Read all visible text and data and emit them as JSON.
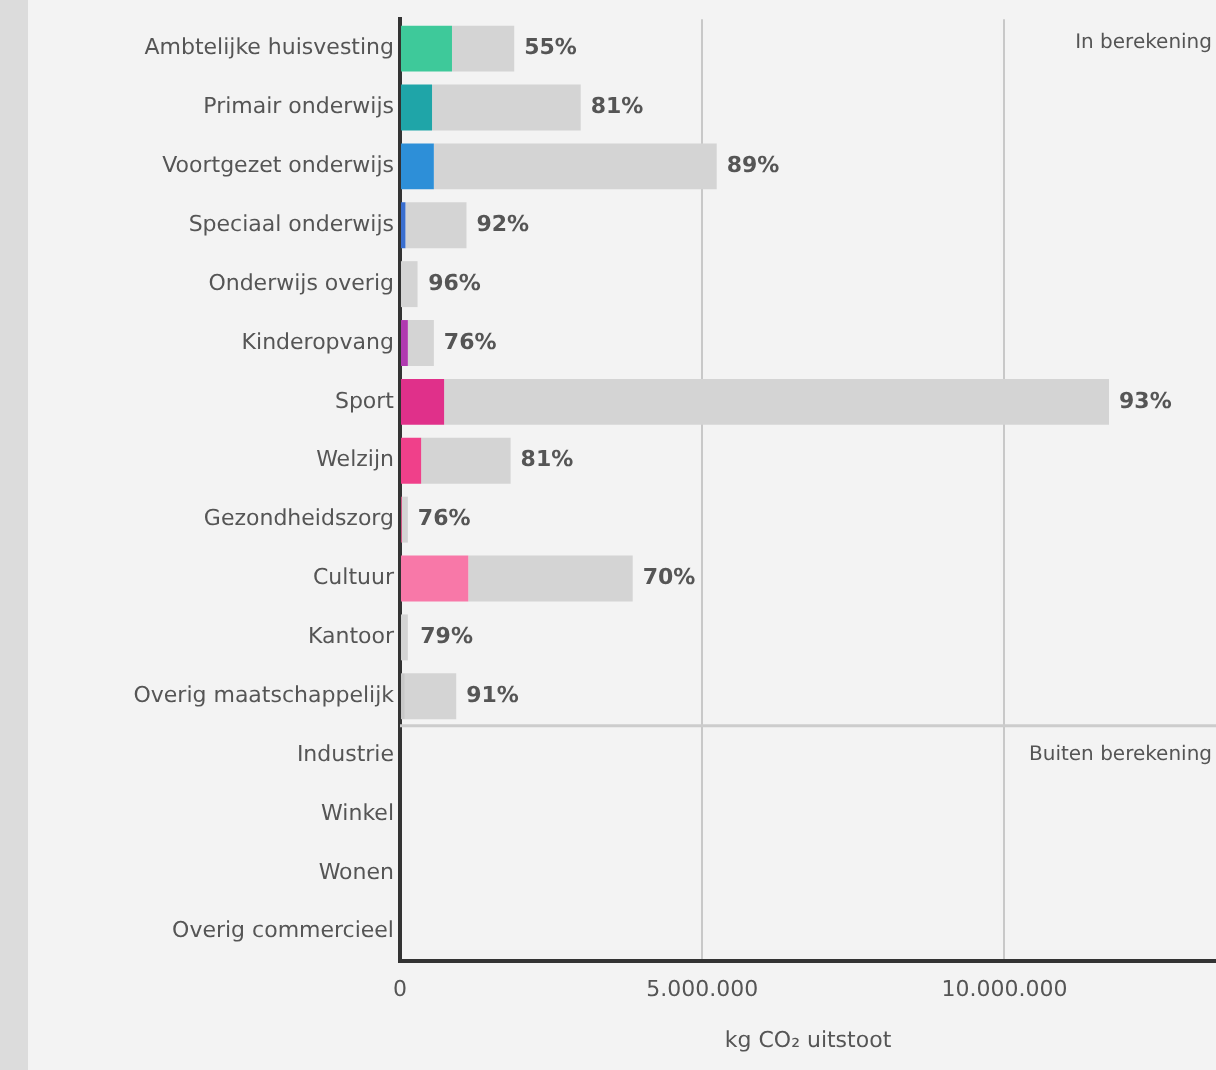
{
  "chart_data": {
    "type": "bar",
    "orientation": "horizontal",
    "stacked": true,
    "xlabel": "kg CO₂ uitstoot",
    "categories": [
      "Ambtelijke huisvesting",
      "Primair onderwijs",
      "Voortgezet onderwijs",
      "Speciaal onderwijs",
      "Onderwijs overig",
      "Kinderopvang",
      "Sport",
      "Welzijn",
      "Gezondheidszorg",
      "Cultuur",
      "Kantoor",
      "Overig maatschappelijk",
      "Industrie",
      "Winkel",
      "Wonen",
      "Overig commercieel"
    ],
    "series": [
      {
        "colors": [
          "#3ec99a",
          "#1fa5a8",
          "#2d8fd8",
          "#3a6fd0",
          "#7a5cc8",
          "#b03ab0",
          "#e0308a",
          "#f0408a",
          "#f05a90",
          "#f878a8",
          "#c8c8c8",
          "#c8c8c8",
          null,
          null,
          null,
          null
        ],
        "values": [
          860000,
          530000,
          560000,
          90000,
          null,
          130000,
          730000,
          350000,
          30000,
          1130000,
          null,
          80000,
          null,
          null,
          null,
          null
        ]
      },
      {
        "color": "#d4d4d4",
        "values": [
          1030000,
          2460000,
          4680000,
          1010000,
          290000,
          430000,
          11000000,
          1480000,
          100000,
          2720000,
          130000,
          850000,
          null,
          null,
          null,
          null
        ]
      }
    ],
    "xlim": [
      0,
      13500000
    ],
    "xticks": [
      0,
      {
        "value": 5000000,
        "label": "5.000.000"
      },
      {
        "value": 10000000,
        "label": "10.000.000"
      }
    ],
    "grid": "x",
    "legend": false,
    "ref_lines": [
      {
        "axis": "y",
        "value": "Industrie",
        "label": "Buiten berekening",
        "color": "#cccccc"
      }
    ],
    "annotations": [
      "In berekening",
      {
        "text": "55%",
        "x": 1890000,
        "y": "Ambtelijke huisvesting"
      },
      {
        "text": "81%",
        "x": 2990000,
        "y": "Primair onderwijs"
      },
      {
        "text": "89%",
        "x": 5240000,
        "y": "Voortgezet onderwijs"
      },
      {
        "text": "92%",
        "x": 1100000,
        "y": "Speciaal onderwijs"
      },
      {
        "text": "96%",
        "x": 300000,
        "y": "Onderwijs overig"
      },
      {
        "text": "76%",
        "x": 560000,
        "y": "Kinderopvang"
      },
      {
        "text": "93%",
        "x": 11730000,
        "y": "Sport"
      },
      {
        "text": "81%",
        "x": 1830000,
        "y": "Welzijn"
      },
      {
        "text": "76%",
        "x": 130000,
        "y": "Gezondheidszorg"
      },
      {
        "text": "70%",
        "x": 3850000,
        "y": "Cultuur"
      },
      {
        "text": "79%",
        "x": 170000,
        "y": "Kantoor"
      },
      {
        "text": "91%",
        "x": 930000,
        "y": "Overig maatschappelijk"
      }
    ]
  }
}
